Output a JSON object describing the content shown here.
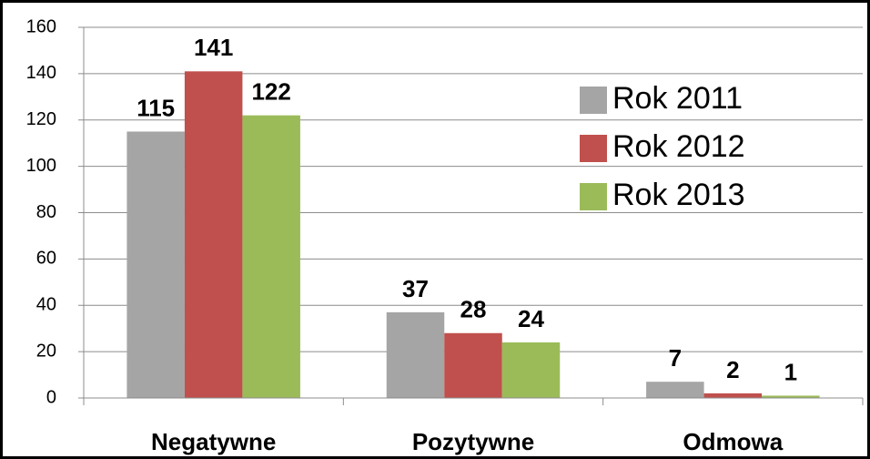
{
  "chart_data": {
    "type": "bar",
    "categories": [
      "Negatywne",
      "Pozytywne",
      "Odmowa"
    ],
    "series": [
      {
        "name": "Rok 2011",
        "color": "#a5a5a5",
        "values": [
          115,
          37,
          7
        ]
      },
      {
        "name": "Rok 2012",
        "color": "#c0504d",
        "values": [
          141,
          28,
          2
        ]
      },
      {
        "name": "Rok 2013",
        "color": "#9bbb59",
        "values": [
          122,
          24,
          1
        ]
      }
    ],
    "ylim": [
      0,
      160
    ],
    "yticks": [
      0,
      20,
      40,
      60,
      80,
      100,
      120,
      140,
      160
    ],
    "grid": true,
    "legend": "upper right"
  }
}
